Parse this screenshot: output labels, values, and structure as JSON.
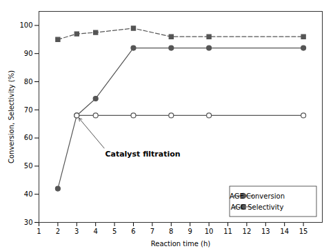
{
  "chart_data": {
    "type": "line",
    "xlabel": "Reaction time (h)",
    "ylabel": "Conversion, Selectivity (%)",
    "xlim": [
      1,
      16
    ],
    "ylim": [
      30,
      105
    ],
    "xticks": [
      1,
      2,
      3,
      4,
      5,
      6,
      7,
      8,
      9,
      10,
      11,
      12,
      13,
      14,
      15
    ],
    "yticks": [
      30,
      40,
      50,
      60,
      70,
      80,
      90,
      100
    ],
    "grid": false,
    "legend": "lower right",
    "color": "#555555",
    "series": [
      {
        "name": "AGE Conversion",
        "x": [
          2,
          3,
          4,
          6,
          8,
          10,
          15
        ],
        "values": [
          42,
          68,
          74,
          92,
          92,
          92,
          92
        ],
        "marker": "circle",
        "line_style": "solid"
      },
      {
        "name": "AGC Selectivity",
        "x": [
          2,
          3,
          4,
          6,
          8,
          10,
          15
        ],
        "values": [
          95,
          97,
          97.5,
          99,
          96,
          96,
          96
        ],
        "marker": "square",
        "line_style": "dashed"
      },
      {
        "x": [
          3,
          4,
          6,
          8,
          10,
          15
        ],
        "values": [
          68,
          68,
          68,
          68,
          68,
          68
        ],
        "marker": "open_circle",
        "line_style": "solid"
      }
    ],
    "annotations": [
      {
        "text": "Catalyst filtration",
        "xy": [
          3,
          68
        ],
        "xytext": [
          4.5,
          56
        ]
      }
    ]
  }
}
